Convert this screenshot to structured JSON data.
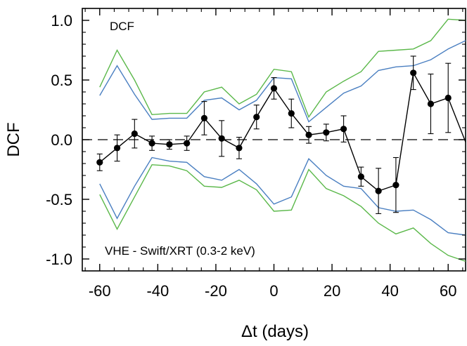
{
  "chart_data": {
    "type": "line",
    "xlabel": "Δt (days)",
    "ylabel": "DCF",
    "xlim": [
      -66,
      66
    ],
    "ylim": [
      -1.1,
      1.1
    ],
    "x_ticks": [
      "-60",
      "-40",
      "-20",
      "0",
      "20",
      "40",
      "60"
    ],
    "x_tick_values": [
      -60,
      -40,
      -20,
      0,
      20,
      40,
      60
    ],
    "y_ticks": [
      "1.0",
      "0.5",
      "0.0",
      "-0.5",
      "-1.0"
    ],
    "y_tick_values": [
      1.0,
      0.5,
      0.0,
      -0.5,
      -1.0
    ],
    "annotations": {
      "top_label": "DCF",
      "bottom_label": "VHE - Swift/XRT (0.3-2 keV)"
    },
    "reference_line": {
      "y": 0,
      "style": "dashed"
    },
    "colors": {
      "dcf": "#000000",
      "blue": "#4a7fc1",
      "green": "#5bb84a"
    },
    "x": [
      -60,
      -54,
      -48,
      -42,
      -36,
      -30,
      -24,
      -18,
      -12,
      -6,
      0,
      6,
      12,
      18,
      24,
      30,
      36,
      42,
      48,
      54,
      60,
      66
    ],
    "series": [
      {
        "key": "dcf",
        "values": [
          -0.19,
          -0.07,
          0.05,
          -0.03,
          -0.04,
          -0.03,
          0.18,
          0.01,
          -0.07,
          0.19,
          0.43,
          0.22,
          0.04,
          0.06,
          0.09,
          -0.31,
          -0.43,
          -0.38,
          0.56,
          0.3,
          0.35,
          -0.02
        ],
        "errors": [
          0.07,
          0.11,
          0.12,
          0.06,
          0.04,
          0.06,
          0.14,
          0.15,
          0.09,
          0.1,
          0.09,
          0.12,
          0.07,
          0.07,
          0.11,
          0.08,
          0.19,
          0.23,
          0.14,
          0.25,
          0.29,
          0.0
        ]
      },
      {
        "key": "blue-upper",
        "values": [
          0.37,
          0.62,
          0.38,
          0.17,
          0.18,
          0.18,
          0.33,
          0.35,
          0.25,
          0.33,
          0.52,
          0.51,
          0.15,
          0.27,
          0.39,
          0.45,
          0.58,
          0.61,
          0.62,
          0.67,
          0.76,
          0.83
        ]
      },
      {
        "key": "green-upper",
        "values": [
          0.44,
          0.75,
          0.5,
          0.21,
          0.22,
          0.22,
          0.4,
          0.44,
          0.3,
          0.38,
          0.59,
          0.57,
          0.19,
          0.4,
          0.49,
          0.57,
          0.74,
          0.75,
          0.76,
          0.83,
          1.01,
          1.0
        ]
      },
      {
        "key": "blue-lower",
        "values": [
          -0.37,
          -0.66,
          -0.39,
          -0.15,
          -0.18,
          -0.19,
          -0.31,
          -0.34,
          -0.25,
          -0.37,
          -0.54,
          -0.48,
          -0.16,
          -0.3,
          -0.39,
          -0.41,
          -0.57,
          -0.6,
          -0.59,
          -0.67,
          -0.78,
          -0.8
        ]
      },
      {
        "key": "green-lower",
        "values": [
          -0.46,
          -0.75,
          -0.48,
          -0.21,
          -0.22,
          -0.26,
          -0.39,
          -0.4,
          -0.34,
          -0.42,
          -0.6,
          -0.59,
          -0.25,
          -0.41,
          -0.47,
          -0.56,
          -0.7,
          -0.79,
          -0.74,
          -0.87,
          -0.97,
          -1.02
        ]
      }
    ]
  }
}
